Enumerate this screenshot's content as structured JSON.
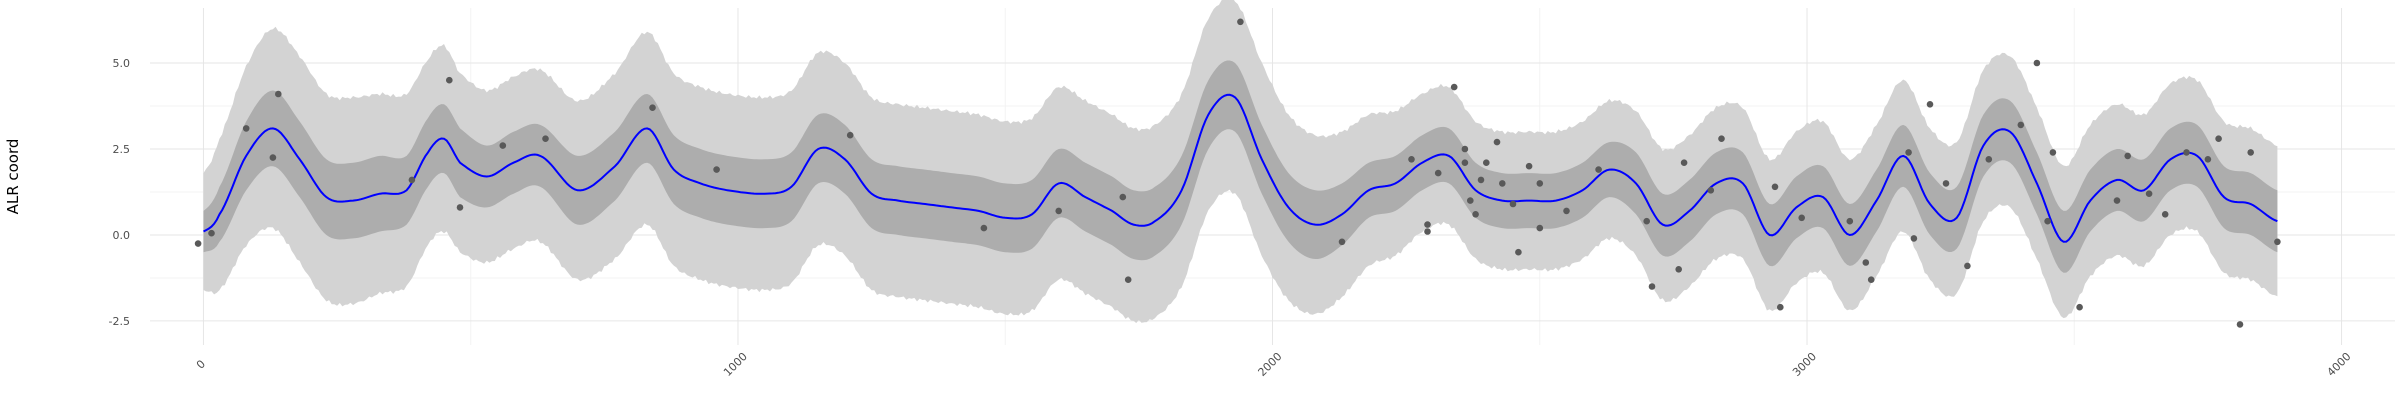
{
  "chart_data": {
    "type": "line",
    "title": "",
    "xlabel": "",
    "ylabel": "ALR coord",
    "xlim": [
      -100,
      4100
    ],
    "ylim": [
      -3.2,
      6.6
    ],
    "x_ticks": [
      0,
      1000,
      2000,
      3000,
      4000
    ],
    "x_tick_labels": [
      "0",
      "1000",
      "2000",
      "3000",
      "4000"
    ],
    "y_ticks": [
      -2.5,
      0.0,
      2.5,
      5.0
    ],
    "y_tick_labels": [
      "-2.5",
      "0.0",
      "2.5",
      "5.0"
    ],
    "grid": true,
    "legend": "none",
    "colors": {
      "mean_line": "#0000ff",
      "inner_band": "#adadad",
      "outer_band": "#d3d3d3",
      "points": "#595959"
    },
    "series": [
      {
        "kind": "line",
        "x": [
          0,
          30,
          80,
          130,
          180,
          230,
          280,
          330,
          380,
          420,
          450,
          480,
          530,
          580,
          630,
          700,
          770,
          830,
          880,
          930,
          980,
          1050,
          1100,
          1150,
          1200,
          1250,
          1300,
          1350,
          1400,
          1450,
          1500,
          1550,
          1600,
          1650,
          1700,
          1740,
          1780,
          1830,
          1880,
          1930,
          1980,
          2030,
          2080,
          2130,
          2180,
          2230,
          2280,
          2330,
          2380,
          2430,
          2480,
          2530,
          2580,
          2630,
          2680,
          2730,
          2780,
          2830,
          2880,
          2930,
          2980,
          3030,
          3080,
          3130,
          3180,
          3230,
          3280,
          3330,
          3380,
          3430,
          3480,
          3530,
          3580,
          3630,
          3680,
          3730,
          3780,
          3830,
          3880
        ],
        "y": [
          0.1,
          0.6,
          2.3,
          3.1,
          2.2,
          1.1,
          1.0,
          1.2,
          1.3,
          2.4,
          2.8,
          2.1,
          1.7,
          2.1,
          2.3,
          1.3,
          2.0,
          3.1,
          1.9,
          1.5,
          1.3,
          1.2,
          1.4,
          2.5,
          2.2,
          1.2,
          1.0,
          0.9,
          0.8,
          0.7,
          0.5,
          0.6,
          1.5,
          1.1,
          0.7,
          0.3,
          0.4,
          1.3,
          3.5,
          4.0,
          2.2,
          0.8,
          0.3,
          0.6,
          1.3,
          1.5,
          2.1,
          2.3,
          1.3,
          1.0,
          1.0,
          1.0,
          1.3,
          1.9,
          1.5,
          0.3,
          0.7,
          1.5,
          1.5,
          0.0,
          0.8,
          1.1,
          0.0,
          1.0,
          2.3,
          0.9,
          0.5,
          2.6,
          3.0,
          1.5,
          -0.2,
          1.0,
          1.6,
          1.3,
          2.2,
          2.3,
          1.1,
          0.9,
          0.4
        ]
      },
      {
        "kind": "ribbon",
        "x": [
          0,
          30,
          80,
          130,
          180,
          230,
          280,
          330,
          380,
          420,
          450,
          480,
          530,
          580,
          630,
          700,
          770,
          830,
          880,
          930,
          980,
          1050,
          1100,
          1150,
          1200,
          1250,
          1300,
          1350,
          1400,
          1450,
          1500,
          1550,
          1600,
          1650,
          1700,
          1740,
          1780,
          1830,
          1880,
          1930,
          1980,
          2030,
          2080,
          2130,
          2180,
          2230,
          2280,
          2330,
          2380,
          2430,
          2480,
          2530,
          2580,
          2630,
          2680,
          2730,
          2780,
          2830,
          2880,
          2930,
          2980,
          3030,
          3080,
          3130,
          3180,
          3230,
          3280,
          3330,
          3380,
          3430,
          3480,
          3530,
          3580,
          3630,
          3680,
          3730,
          3780,
          3830,
          3880
        ],
        "half_width": [
          0.6,
          0.8,
          1.0,
          1.1,
          1.1,
          1.1,
          1.1,
          1.1,
          1.0,
          1.0,
          1.0,
          1.0,
          0.9,
          0.9,
          0.9,
          1.0,
          1.0,
          1.0,
          1.0,
          1.0,
          1.0,
          1.0,
          1.0,
          1.0,
          1.0,
          1.0,
          1.0,
          1.0,
          1.0,
          1.0,
          1.0,
          1.0,
          1.0,
          1.0,
          1.0,
          1.0,
          1.0,
          1.0,
          1.0,
          1.0,
          1.0,
          1.0,
          1.0,
          0.9,
          0.8,
          0.8,
          0.8,
          0.8,
          0.8,
          0.8,
          0.8,
          0.8,
          0.8,
          0.8,
          0.9,
          0.9,
          0.9,
          0.9,
          0.9,
          0.9,
          0.9,
          0.9,
          0.9,
          0.9,
          0.9,
          0.9,
          0.9,
          0.9,
          0.9,
          0.9,
          0.9,
          0.9,
          0.9,
          0.9,
          0.9,
          0.9,
          0.9,
          0.9,
          0.9
        ]
      },
      {
        "kind": "ribbon",
        "x": [
          0,
          30,
          80,
          130,
          180,
          230,
          280,
          330,
          380,
          420,
          450,
          480,
          530,
          580,
          630,
          700,
          770,
          830,
          880,
          930,
          980,
          1050,
          1100,
          1150,
          1200,
          1250,
          1300,
          1350,
          1400,
          1450,
          1500,
          1550,
          1600,
          1650,
          1700,
          1740,
          1780,
          1830,
          1880,
          1930,
          1980,
          2030,
          2080,
          2130,
          2180,
          2230,
          2280,
          2330,
          2380,
          2430,
          2480,
          2530,
          2580,
          2630,
          2680,
          2730,
          2780,
          2830,
          2880,
          2930,
          2980,
          3030,
          3080,
          3130,
          3180,
          3230,
          3280,
          3330,
          3380,
          3430,
          3480,
          3530,
          3580,
          3630,
          3680,
          3730,
          3780,
          3830,
          3880
        ],
        "half_width": [
          1.7,
          2.2,
          2.6,
          2.9,
          3.0,
          3.0,
          3.0,
          2.9,
          2.8,
          2.7,
          2.7,
          2.6,
          2.5,
          2.5,
          2.5,
          2.6,
          2.7,
          2.8,
          2.8,
          2.8,
          2.8,
          2.8,
          2.8,
          2.8,
          2.8,
          2.8,
          2.8,
          2.8,
          2.8,
          2.8,
          2.8,
          2.8,
          2.8,
          2.8,
          2.8,
          2.8,
          2.8,
          2.8,
          2.8,
          2.8,
          2.8,
          2.7,
          2.6,
          2.4,
          2.2,
          2.1,
          2.0,
          2.0,
          2.0,
          2.0,
          2.0,
          2.0,
          2.0,
          2.0,
          2.1,
          2.2,
          2.2,
          2.2,
          2.2,
          2.2,
          2.2,
          2.2,
          2.2,
          2.2,
          2.2,
          2.2,
          2.2,
          2.2,
          2.2,
          2.2,
          2.2,
          2.2,
          2.2,
          2.2,
          2.2,
          2.2,
          2.2,
          2.2,
          2.2
        ]
      },
      {
        "kind": "scatter",
        "points": [
          [
            -10,
            -0.25
          ],
          [
            15,
            0.05
          ],
          [
            80,
            3.1
          ],
          [
            130,
            2.25
          ],
          [
            140,
            4.1
          ],
          [
            390,
            1.6
          ],
          [
            460,
            4.5
          ],
          [
            480,
            0.8
          ],
          [
            560,
            2.6
          ],
          [
            640,
            2.8
          ],
          [
            840,
            3.7
          ],
          [
            960,
            1.9
          ],
          [
            1210,
            2.9
          ],
          [
            1460,
            0.2
          ],
          [
            1600,
            0.7
          ],
          [
            1720,
            1.1
          ],
          [
            1730,
            -1.3
          ],
          [
            1940,
            6.2
          ],
          [
            2130,
            -0.2
          ],
          [
            2260,
            2.2
          ],
          [
            2290,
            0.1
          ],
          [
            2290,
            0.3
          ],
          [
            2310,
            1.8
          ],
          [
            2340,
            4.3
          ],
          [
            2360,
            2.5
          ],
          [
            2360,
            2.1
          ],
          [
            2370,
            1.0
          ],
          [
            2380,
            0.6
          ],
          [
            2390,
            1.6
          ],
          [
            2400,
            2.1
          ],
          [
            2420,
            2.7
          ],
          [
            2430,
            1.5
          ],
          [
            2450,
            0.9
          ],
          [
            2460,
            -0.5
          ],
          [
            2480,
            2.0
          ],
          [
            2500,
            0.2
          ],
          [
            2500,
            1.5
          ],
          [
            2550,
            0.7
          ],
          [
            2610,
            1.9
          ],
          [
            2700,
            0.4
          ],
          [
            2710,
            -1.5
          ],
          [
            2760,
            -1.0
          ],
          [
            2770,
            2.1
          ],
          [
            2820,
            1.3
          ],
          [
            2840,
            2.8
          ],
          [
            2940,
            1.4
          ],
          [
            2950,
            -2.1
          ],
          [
            2990,
            0.5
          ],
          [
            3080,
            0.4
          ],
          [
            3110,
            -0.8
          ],
          [
            3120,
            -1.3
          ],
          [
            3190,
            2.4
          ],
          [
            3200,
            -0.1
          ],
          [
            3230,
            3.8
          ],
          [
            3260,
            1.5
          ],
          [
            3300,
            -0.9
          ],
          [
            3340,
            2.2
          ],
          [
            3400,
            3.2
          ],
          [
            3430,
            5.0
          ],
          [
            3450,
            0.4
          ],
          [
            3460,
            2.4
          ],
          [
            3510,
            -2.1
          ],
          [
            3580,
            1.0
          ],
          [
            3600,
            2.3
          ],
          [
            3640,
            1.2
          ],
          [
            3670,
            0.6
          ],
          [
            3710,
            2.4
          ],
          [
            3750,
            2.2
          ],
          [
            3770,
            2.8
          ],
          [
            3810,
            -2.6
          ],
          [
            3830,
            2.4
          ],
          [
            3880,
            -0.2
          ]
        ]
      }
    ]
  }
}
